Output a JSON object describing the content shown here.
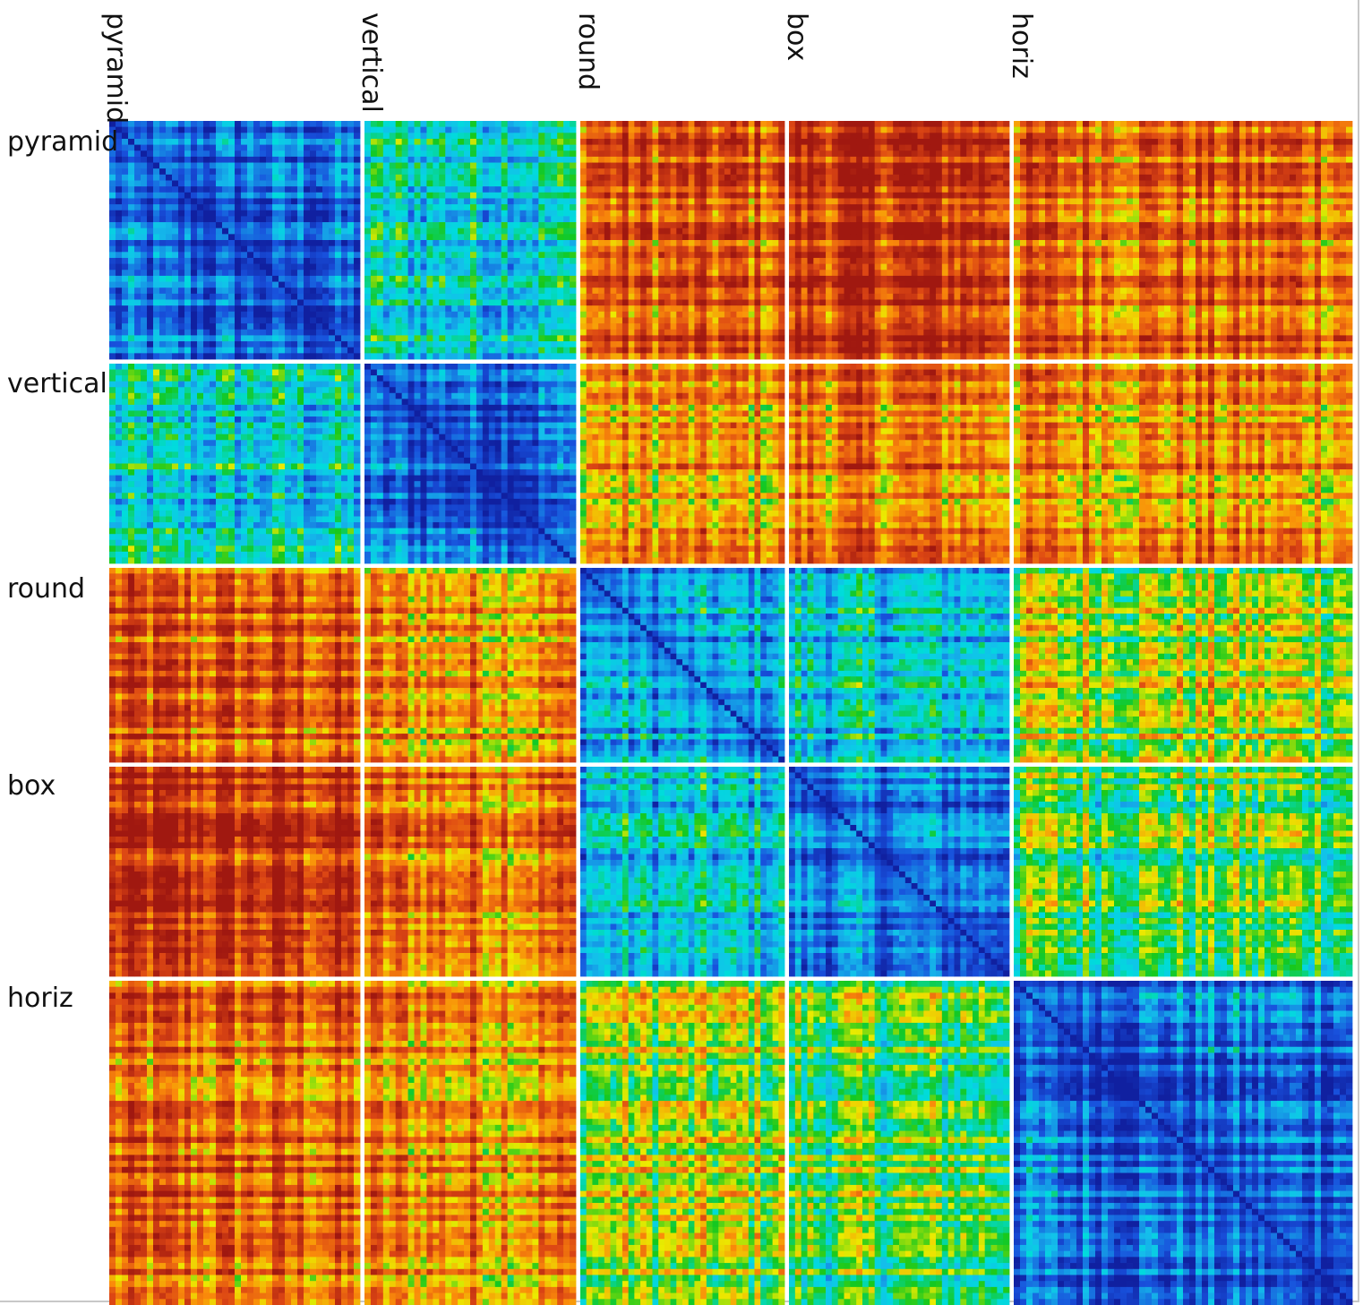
{
  "chart_data": {
    "type": "heatmap",
    "title": "",
    "row_labels": [
      "pyramid",
      "vertical",
      "round",
      "box",
      "horiz"
    ],
    "col_labels": [
      "pyramid",
      "vertical",
      "round",
      "box",
      "horiz"
    ],
    "block_sizes": [
      40,
      34,
      34,
      36,
      54
    ],
    "colormap": "jet",
    "color_low": "#1030c8",
    "color_high": "#a01810",
    "grid_separator_color": "#ffffff",
    "block_mean_level": [
      [
        0.12,
        0.35,
        0.82,
        0.9,
        0.8
      ],
      [
        0.35,
        0.15,
        0.72,
        0.78,
        0.75
      ],
      [
        0.82,
        0.72,
        0.25,
        0.32,
        0.58
      ],
      [
        0.9,
        0.78,
        0.32,
        0.18,
        0.5
      ],
      [
        0.8,
        0.75,
        0.58,
        0.5,
        0.15
      ]
    ]
  }
}
